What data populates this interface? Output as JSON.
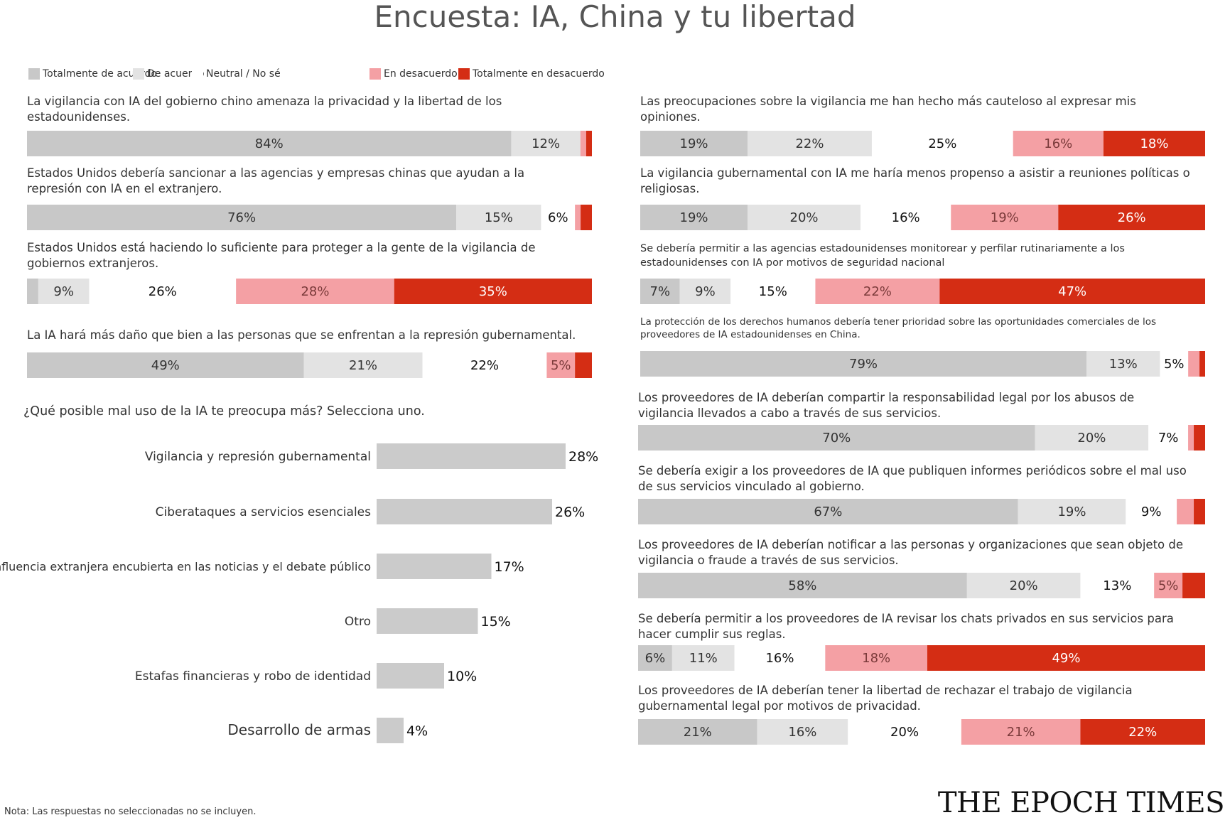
{
  "title": "Encuesta: IA, China y tu libertad",
  "legend": [
    {
      "label": "Totalmente de acuerdo",
      "color": "#c8c8c8"
    },
    {
      "label": "De acuerdo",
      "color": "#e3e3e3"
    },
    {
      "label": "Neutral / No sé",
      "color": "#ffffff"
    },
    {
      "label": "En desacuerdo",
      "color": "#f4a0a4"
    },
    {
      "label": "Totalmente en desacuerdo",
      "color": "#d42d14"
    }
  ],
  "chart_data": [
    {
      "type": "bar",
      "subtype": "stacked-horizontal-100",
      "categories": [
        "Totalmente de acuerdo",
        "De acuerdo",
        "Neutral / No sé",
        "En desacuerdo",
        "Totalmente en desacuerdo"
      ],
      "questions": [
        {
          "text": "La vigilancia con IA del gobierno chino amenaza la privacidad y la libertad de los estadounidenses.",
          "values": [
            84,
            12,
            null,
            1,
            1
          ],
          "labels": [
            "84%",
            "12%",
            "",
            "",
            ""
          ]
        },
        {
          "text": "Estados Unidos debería sancionar a las agencias y empresas chinas que ayudan a la represión con IA en el extranjero.",
          "values": [
            76,
            15,
            6,
            1,
            2
          ],
          "labels": [
            "76%",
            "15%",
            "6%",
            "",
            ""
          ]
        },
        {
          "text": "Estados Unidos está haciendo lo suficiente para proteger a la gente de la vigilancia de gobiernos extranjeros.",
          "values": [
            2,
            9,
            26,
            28,
            35
          ],
          "labels": [
            "",
            "9%",
            "26%",
            "28%",
            "35%"
          ]
        },
        {
          "text": "La IA hará más daño que bien a las personas que se enfrentan a la represión gubernamental.",
          "values": [
            49,
            21,
            22,
            5,
            3
          ],
          "labels": [
            "49%",
            "21%",
            "22%",
            "5%",
            ""
          ]
        },
        {
          "text": "Las preocupaciones sobre la vigilancia me han hecho más cauteloso al expresar mis opiniones.",
          "values": [
            19,
            22,
            25,
            16,
            18
          ],
          "labels": [
            "19%",
            "22%",
            "25%",
            "16%",
            "18%"
          ]
        },
        {
          "text": "La vigilancia gubernamental con IA me haría menos propenso a asistir a reuniones políticas o religiosas.",
          "values": [
            19,
            20,
            16,
            19,
            26
          ],
          "labels": [
            "19%",
            "20%",
            "16%",
            "19%",
            "26%"
          ]
        },
        {
          "text": "Se debería permitir a las agencias estadounidenses monitorear y perfilar rutinariamente a los estadounidenses con IA por motivos de seguridad nacional",
          "values": [
            7,
            9,
            15,
            22,
            47
          ],
          "labels": [
            "7%",
            "9%",
            "15%",
            "22%",
            "47%"
          ]
        },
        {
          "text": "La protección de los derechos humanos debería tener prioridad sobre las oportunidades comerciales de los proveedores de IA estadounidenses en China.",
          "values": [
            79,
            13,
            5,
            2,
            1
          ],
          "labels": [
            "79%",
            "13%",
            "5%",
            "",
            ""
          ]
        },
        {
          "text": "Los proveedores de IA deberían compartir la responsabilidad legal por los abusos de vigilancia llevados a cabo a través de sus servicios.",
          "values": [
            70,
            20,
            7,
            1,
            2
          ],
          "labels": [
            "70%",
            "20%",
            "7%",
            "",
            ""
          ]
        },
        {
          "text": "Se debería exigir a los proveedores de IA que publiquen informes periódicos sobre el mal uso de sus servicios vinculado al gobierno.",
          "values": [
            67,
            19,
            9,
            3,
            2
          ],
          "labels": [
            "67%",
            "19%",
            "9%",
            "",
            ""
          ]
        },
        {
          "text": "Los proveedores de IA deberían notificar a las personas y organizaciones que sean objeto de vigilancia o fraude a través de sus servicios.",
          "values": [
            58,
            20,
            13,
            5,
            4
          ],
          "labels": [
            "58%",
            "20%",
            "13%",
            "5%",
            ""
          ]
        },
        {
          "text": "Se debería permitir a los proveedores de IA revisar los chats privados en sus servicios para hacer cumplir sus reglas.",
          "values": [
            6,
            11,
            16,
            18,
            49
          ],
          "labels": [
            "6%",
            "11%",
            "16%",
            "18%",
            "49%"
          ]
        },
        {
          "text": "Los proveedores de IA deberían tener la libertad de rechazar el trabajo de vigilancia gubernamental legal por motivos de privacidad.",
          "values": [
            21,
            16,
            20,
            21,
            22
          ],
          "labels": [
            "21%",
            "16%",
            "20%",
            "21%",
            "22%"
          ]
        }
      ]
    },
    {
      "type": "bar",
      "subtype": "horizontal",
      "title": "¿Qué posible mal uso de la IA te preocupa más? Selecciona uno.",
      "categories": [
        "Vigilancia y represión gubernamental",
        "Ciberataques a servicios esenciales",
        "Influencia extranjera encubierta en las noticias y el debate público",
        "Otro",
        "Estafas financieras y robo de identidad",
        "Desarrollo de armas"
      ],
      "values": [
        28,
        26,
        17,
        15,
        10,
        4
      ],
      "labels": [
        "28%",
        "26%",
        "17%",
        "15%",
        "10%",
        "4%"
      ]
    }
  ],
  "footnote": "Nota: Las respuestas no seleccionadas no se incluyen.",
  "brand": "THE EPOCH TIMES",
  "colors": {
    "strongly_agree": "#c8c8c8",
    "agree": "#e3e3e3",
    "neutral": "#ffffff",
    "disagree": "#f4a0a4",
    "strongly_disagree": "#d42d14",
    "misuse_bar": "#cbcbcb"
  }
}
